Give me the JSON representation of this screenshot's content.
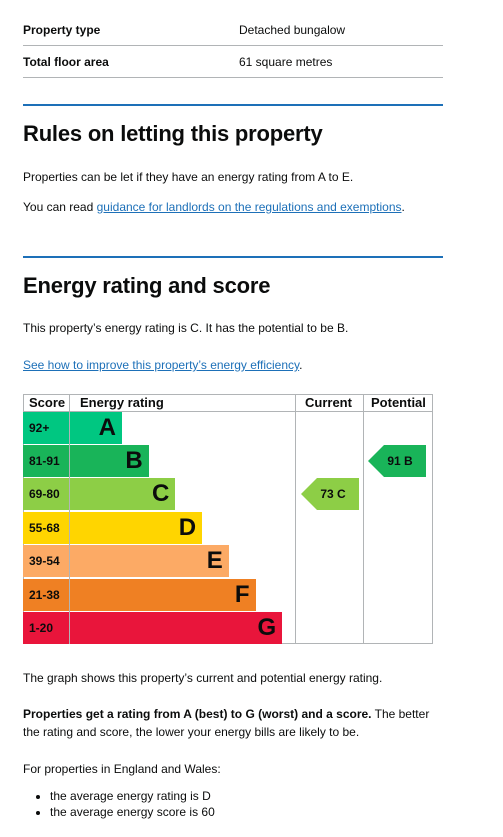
{
  "summary": [
    {
      "key": "Property type",
      "value": "Detached bungalow"
    },
    {
      "key": "Total floor area",
      "value": "61 square metres"
    }
  ],
  "letting": {
    "heading": "Rules on letting this property",
    "para1": "Properties can be let if they have an energy rating from A to E.",
    "para2_prefix": "You can read ",
    "para2_link": "guidance for landlords on the regulations and exemptions",
    "para2_suffix": "."
  },
  "energy": {
    "heading": "Energy rating and score",
    "para1": "This property’s energy rating is C. It has the potential to be B.",
    "improve_link": "See how to improve this property’s energy efficiency",
    "improve_suffix": "."
  },
  "chart_data": {
    "type": "table",
    "headers": {
      "score": "Score",
      "rating": "Energy rating",
      "current": "Current",
      "potential": "Potential"
    },
    "bands": [
      {
        "score": "92+",
        "letter": "A",
        "color": "#00c781"
      },
      {
        "score": "81-91",
        "letter": "B",
        "color": "#19b459"
      },
      {
        "score": "69-80",
        "letter": "C",
        "color": "#8dce46"
      },
      {
        "score": "55-68",
        "letter": "D",
        "color": "#ffd500"
      },
      {
        "score": "39-54",
        "letter": "E",
        "color": "#fcaa65"
      },
      {
        "score": "21-38",
        "letter": "F",
        "color": "#ef8023"
      },
      {
        "score": "1-20",
        "letter": "G",
        "color": "#e9153b"
      }
    ],
    "current": {
      "score": 73,
      "letter": "C",
      "label": "73  C",
      "color": "#8dce46"
    },
    "potential": {
      "score": 91,
      "letter": "B",
      "label": "91  B",
      "color": "#19b459"
    }
  },
  "after": {
    "graph_note": "The graph shows this property’s current and potential energy rating.",
    "bold_lead": "Properties get a rating from A (best) to G (worst) and a score.",
    "rest": " The better the rating and score, the lower your energy bills are likely to be.",
    "england_wales": "For properties in England and Wales:",
    "bullets": [
      "the average energy rating is D",
      "the average energy score is 60"
    ]
  }
}
